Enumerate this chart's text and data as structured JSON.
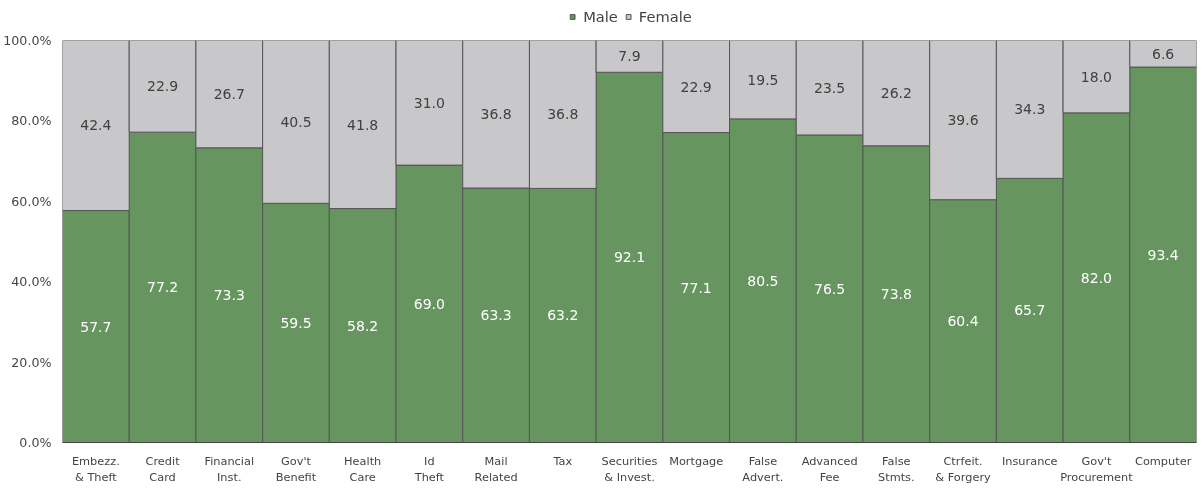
{
  "chart_data": {
    "type": "bar",
    "stacked": true,
    "categories": [
      "Embezz.\n& Theft",
      "Credit\nCard",
      "Financial\nInst.",
      "Gov't\nBenefit",
      "Health\nCare",
      "Id\nTheft",
      "Mail\nRelated",
      "Tax",
      "Securities\n& Invest.",
      "Mortgage",
      "False\nAdvert.",
      "Advanced\nFee",
      "False\nStmts.",
      "Ctrfeit.\n& Forgery",
      "Insurance",
      "Gov't\nProcurement",
      "Computer"
    ],
    "series": [
      {
        "name": "Male",
        "color": "#66955f",
        "values": [
          57.7,
          77.2,
          73.3,
          59.5,
          58.2,
          69.0,
          63.3,
          63.2,
          92.1,
          77.1,
          80.5,
          76.5,
          73.8,
          60.4,
          65.7,
          82.0,
          93.4
        ],
        "value_labels": [
          "57.7",
          "77.2",
          "73.3",
          "59.5",
          "58.2",
          "69.0",
          "63.3",
          "63.2",
          "92.1",
          "77.1",
          "80.5",
          "76.5",
          "73.8",
          "60.4",
          "65.7",
          "82.0",
          "93.4"
        ]
      },
      {
        "name": "Female",
        "color": "#c8c8ca",
        "values": [
          42.4,
          22.9,
          26.7,
          40.5,
          41.8,
          31.0,
          36.8,
          36.8,
          7.9,
          22.9,
          19.5,
          23.5,
          26.2,
          39.6,
          34.3,
          18.0,
          6.6
        ],
        "value_labels": [
          "42.4",
          "22.9",
          "26.7",
          "40.5",
          "41.8",
          "31.0",
          "36.8",
          "36.8",
          "7.9",
          "22.9",
          "19.5",
          "23.5",
          "26.2",
          "39.6",
          "34.3",
          "18.0",
          "6.6"
        ]
      }
    ],
    "ylim": [
      0,
      100
    ],
    "yticks": [
      {
        "value": 0,
        "label": "0.0%"
      },
      {
        "value": 20,
        "label": "20.0%"
      },
      {
        "value": 40,
        "label": "40.0%"
      },
      {
        "value": 60,
        "label": "60.0%"
      },
      {
        "value": 80,
        "label": "80.0%"
      },
      {
        "value": 100,
        "label": "100.0%"
      }
    ],
    "legend": "top"
  }
}
